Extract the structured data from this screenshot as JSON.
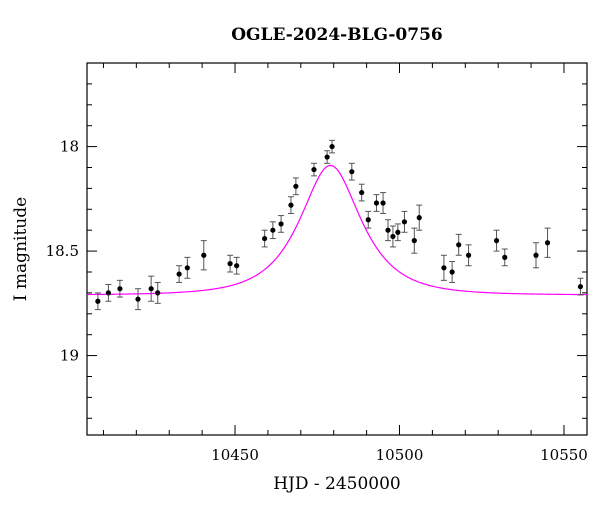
{
  "chart_data": {
    "type": "scatter",
    "title": "OGLE-2024-BLG-0756",
    "xlabel": "HJD - 2450000",
    "ylabel": "I magnitude",
    "xlim": [
      10405,
      10557
    ],
    "ylim": [
      19.38,
      17.6
    ],
    "y_inverted": true,
    "grid": false,
    "xticks": {
      "major": [
        10450,
        10500,
        10550
      ],
      "labels": [
        "10450",
        "10500",
        "10550"
      ],
      "minor_step": 10
    },
    "yticks": {
      "major": [
        18.0,
        18.5,
        19.0
      ],
      "labels": [
        "18",
        "18.5",
        "19"
      ],
      "minor_step": 0.1
    },
    "colors": {
      "points": "#000000",
      "model": "#ff00ff",
      "frame": "#000000"
    },
    "series": [
      {
        "kind": "points_with_errorbars",
        "x": [
          10408.3,
          10411.5,
          10415.0,
          10420.5,
          10424.5,
          10426.5,
          10433.0,
          10435.5,
          10440.5,
          10448.5,
          10450.5,
          10459.0,
          10461.5,
          10464.0,
          10467.0,
          10468.5,
          10474.0,
          10478.0,
          10479.5,
          10485.5,
          10488.5,
          10490.5,
          10493.0,
          10495.0,
          10496.5,
          10498.0,
          10499.5,
          10501.5,
          10504.5,
          10506.0,
          10513.5,
          10516.0,
          10518.0,
          10521.0,
          10529.5,
          10532.0,
          10541.5,
          10545.0,
          10555.0
        ],
        "y": [
          18.74,
          18.7,
          18.68,
          18.73,
          18.68,
          18.7,
          18.61,
          18.58,
          18.52,
          18.56,
          18.57,
          18.44,
          18.4,
          18.37,
          18.28,
          18.19,
          18.11,
          18.05,
          18.0,
          18.12,
          18.22,
          18.35,
          18.27,
          18.27,
          18.4,
          18.43,
          18.41,
          18.36,
          18.45,
          18.34,
          18.58,
          18.6,
          18.47,
          18.52,
          18.45,
          18.53,
          18.52,
          18.46,
          18.67
        ],
        "yerr": [
          0.04,
          0.04,
          0.04,
          0.05,
          0.06,
          0.05,
          0.04,
          0.05,
          0.07,
          0.04,
          0.04,
          0.04,
          0.04,
          0.04,
          0.04,
          0.04,
          0.03,
          0.03,
          0.03,
          0.04,
          0.04,
          0.04,
          0.04,
          0.05,
          0.05,
          0.05,
          0.04,
          0.05,
          0.06,
          0.06,
          0.06,
          0.05,
          0.05,
          0.05,
          0.05,
          0.04,
          0.06,
          0.07,
          0.04
        ]
      },
      {
        "kind": "model_curve",
        "description": "microlensing model",
        "baseline_mag": 18.71,
        "peak_mag": 18.09,
        "t0": 10479,
        "tE": 14
      }
    ]
  }
}
